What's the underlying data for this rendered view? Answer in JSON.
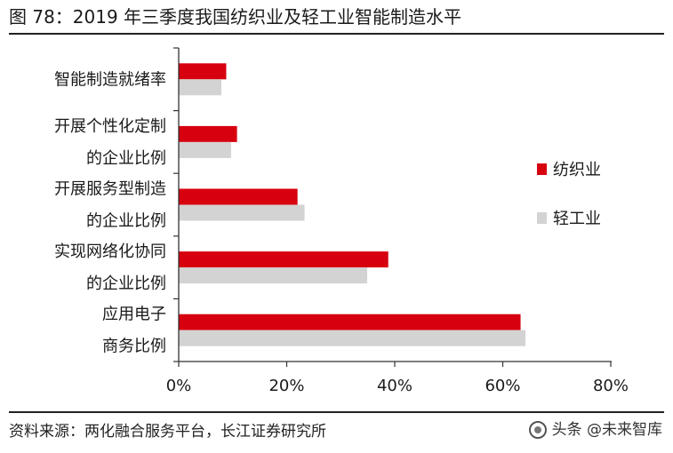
{
  "figure": {
    "title": "图 78：2019 年三季度我国纺织业及轻工业智能制造水平",
    "source": "资料来源：两化融合服务平台，长江证券研究所",
    "watermark": "头条 @未来智库"
  },
  "chart_data": {
    "type": "bar",
    "orientation": "horizontal",
    "categories": [
      [
        "智能制造就绪率"
      ],
      [
        "开展个性化定制",
        "的企业比例"
      ],
      [
        "开展服务型制造",
        "的企业比例"
      ],
      [
        "实现网络化协同",
        "的企业比例"
      ],
      [
        "应用电子",
        "商务比例"
      ]
    ],
    "series": [
      {
        "name": "纺织业",
        "color": "#d7000f",
        "values": [
          8.8,
          10.8,
          22.0,
          38.8,
          63.3
        ]
      },
      {
        "name": "轻工业",
        "color": "#d3d3d3",
        "values": [
          7.9,
          9.7,
          23.3,
          34.9,
          64.2
        ]
      }
    ],
    "x_ticks": [
      "0%",
      "20%",
      "40%",
      "60%",
      "80%"
    ],
    "xlim": [
      0,
      80
    ],
    "unit": "%",
    "legend_position": "right",
    "grid": false
  }
}
